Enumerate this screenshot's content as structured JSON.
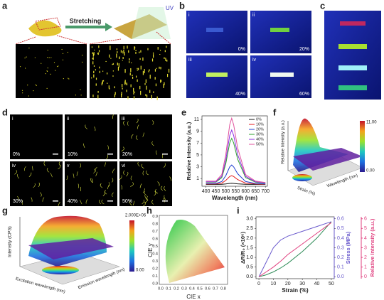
{
  "panels": {
    "a": {
      "label": "a",
      "uv": "UV",
      "arrow": "Stretching"
    },
    "b": {
      "label": "b",
      "photos": [
        {
          "index": "i",
          "strain": "0%"
        },
        {
          "index": "ii",
          "strain": "20%"
        },
        {
          "index": "iii",
          "strain": "40%"
        },
        {
          "index": "iv",
          "strain": "60%"
        }
      ]
    },
    "c": {
      "label": "c"
    },
    "d": {
      "label": "d",
      "images": [
        {
          "index": "i",
          "strain": "0%"
        },
        {
          "index": "ii",
          "strain": "10%"
        },
        {
          "index": "iii",
          "strain": "20%"
        },
        {
          "index": "iv",
          "strain": "30%"
        },
        {
          "index": "v",
          "strain": "40%"
        },
        {
          "index": "vi",
          "strain": "50%"
        }
      ]
    },
    "e": {
      "label": "e"
    },
    "f": {
      "label": "f",
      "zlabel": "Relative Intensity (a.u.)",
      "xlabel": "Strain (%)",
      "ylabel": "Wavelength (nm)",
      "cbar_max": "11.00",
      "cbar_min": "0.00"
    },
    "g": {
      "label": "g",
      "zlabel": "Intensity (CPS)",
      "xlabel": "Excitation wavelength (nm)",
      "ylabel": "Emission wavelength (nm)",
      "cbar_max": "2.000E+06",
      "cbar_min": "0.00"
    },
    "h": {
      "label": "h",
      "xlabel": "CIE x",
      "ylabel": "CIE y",
      "xticks": [
        "0.0",
        "0.1",
        "0.2",
        "0.3",
        "0.4",
        "0.5",
        "0.6",
        "0.7",
        "0.8"
      ],
      "yticks": [
        "0.0",
        "0.1",
        "0.2",
        "0.3",
        "0.4",
        "0.5",
        "0.6",
        "0.7",
        "0.8",
        "0.9"
      ]
    },
    "i": {
      "label": "i"
    }
  },
  "chart_data": [
    {
      "type": "line",
      "xlabel": "Wavelength (nm)",
      "ylabel": "Relative Intensity (a.u.)",
      "x": [
        400,
        450,
        480,
        500,
        520,
        530,
        540,
        560,
        600,
        650,
        700
      ],
      "series": [
        {
          "name": "0%",
          "color": "#111111",
          "values": [
            0.01,
            0.01,
            0.03,
            0.09,
            0.18,
            0.2,
            0.18,
            0.11,
            0.03,
            0.01,
            0.01
          ]
        },
        {
          "name": "10%",
          "color": "#e41a1c",
          "values": [
            0.08,
            0.08,
            0.23,
            0.68,
            1.35,
            1.5,
            1.35,
            0.83,
            0.23,
            0.08,
            0.05
          ]
        },
        {
          "name": "20%",
          "color": "#1f3fd1",
          "values": [
            0.17,
            0.17,
            0.5,
            1.49,
            2.97,
            3.3,
            2.97,
            1.82,
            0.5,
            0.17,
            0.1
          ]
        },
        {
          "name": "30%",
          "color": "#2ca02c",
          "values": [
            0.39,
            0.39,
            1.17,
            3.51,
            7.02,
            7.8,
            7.02,
            4.29,
            1.17,
            0.39,
            0.23
          ]
        },
        {
          "name": "40%",
          "color": "#8a2be2",
          "values": [
            0.46,
            0.46,
            1.38,
            4.14,
            8.28,
            9.2,
            8.28,
            5.06,
            1.38,
            0.46,
            0.28
          ]
        },
        {
          "name": "50%",
          "color": "#e0529c",
          "values": [
            0.56,
            0.56,
            1.68,
            5.04,
            10.08,
            11.2,
            10.08,
            6.16,
            1.68,
            0.56,
            0.34
          ]
        }
      ],
      "xlim": [
        380,
        710
      ],
      "xticks": [
        400,
        450,
        500,
        550,
        600,
        650,
        700
      ],
      "ylim": [
        -0.3,
        11.6
      ],
      "yticks": [
        1,
        3,
        5,
        7,
        9,
        11
      ],
      "legend": "upper right"
    },
    {
      "type": "line",
      "xlabel": "Strain (%)",
      "ylabel": "ΔR/R₀ (×10⁶)",
      "y2label": "Stress (MPa)",
      "y3label": "Relative Intensity (a.u.)",
      "x": [
        0,
        5,
        10,
        15,
        20,
        30,
        40,
        50
      ],
      "series": [
        {
          "color": "#2e8b57",
          "axis": "y",
          "values": [
            0,
            0.1,
            0.25,
            0.45,
            0.7,
            1.3,
            2.0,
            2.85
          ]
        },
        {
          "color": "#6a5acd",
          "axis": "y2",
          "values": [
            0,
            0.15,
            0.3,
            0.38,
            0.42,
            0.47,
            0.52,
            0.57
          ]
        },
        {
          "color": "#e0407f",
          "axis": "y3",
          "values": [
            0,
            0.5,
            1.0,
            1.6,
            2.3,
            3.4,
            4.5,
            5.6
          ]
        }
      ],
      "xlim": [
        -2,
        52
      ],
      "xticks": [
        0,
        10,
        20,
        30,
        40,
        50
      ],
      "ylim": [
        -0.1,
        3.1
      ],
      "yticks": [
        {
          "value": 0,
          "label": "0.0"
        },
        0.5,
        {
          "value": 1,
          "label": "1.0"
        },
        1.5,
        {
          "value": 2,
          "label": "2.0"
        },
        2.5,
        {
          "value": 3,
          "label": "3.0"
        }
      ],
      "y2lim": [
        -0.02,
        0.62
      ],
      "y2ticks": [
        {
          "value": 0,
          "label": "0.0"
        },
        0.1,
        0.2,
        0.3,
        0.4,
        0.5,
        0.6
      ],
      "y3lim": [
        -0.2,
        6.2
      ],
      "y3ticks": [
        0,
        1,
        2,
        3,
        4,
        5,
        6
      ]
    }
  ]
}
